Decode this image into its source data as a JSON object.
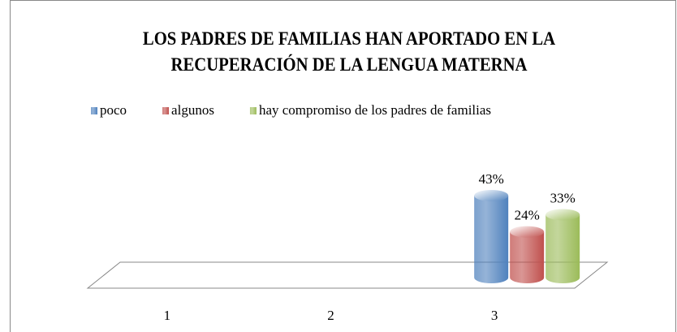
{
  "chart_data": {
    "type": "bar3d",
    "title": "LOS PADRES DE FAMILIAS HAN APORTADO EN LA RECUPERACIÓN DE LA LENGUA MATERNA",
    "categories": [
      "1",
      "2",
      "3"
    ],
    "series": [
      {
        "name": "poco",
        "color": "#4f81bd",
        "values": [
          null,
          null,
          43
        ],
        "value_labels": [
          null,
          null,
          "43%"
        ]
      },
      {
        "name": "algunos",
        "color": "#c0504d",
        "values": [
          null,
          null,
          24
        ],
        "value_labels": [
          null,
          null,
          "24%"
        ]
      },
      {
        "name": "hay compromiso de los padres de familias",
        "color": "#9bbb59",
        "values": [
          null,
          null,
          33
        ],
        "value_labels": [
          null,
          null,
          "33%"
        ]
      }
    ],
    "legend": "top"
  }
}
